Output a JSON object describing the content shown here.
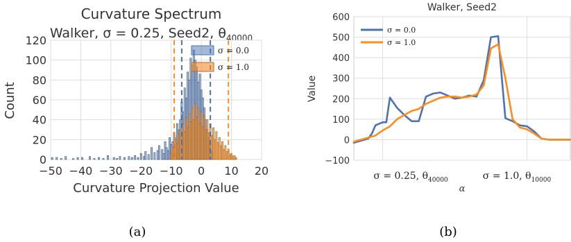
{
  "panels": {
    "a": {
      "label": "(a)"
    },
    "b": {
      "label": "(b)"
    }
  },
  "chart_data": [
    {
      "type": "histogram",
      "title": "Curvature Spectrum",
      "subtitle": "Walker, σ = 0.25, Seed2, θ",
      "subtitle_subscript": "40000",
      "xlabel": "Curvature Projection Value",
      "ylabel": "Count",
      "xlim": [
        -50,
        20
      ],
      "ylim": [
        0,
        120
      ],
      "xticks": [
        "−50",
        "−40",
        "−30",
        "−20",
        "−10",
        "0",
        "10",
        "20"
      ],
      "yticks": [
        "0",
        "20",
        "40",
        "60",
        "80",
        "100",
        "120"
      ],
      "grid": true,
      "legend": "top-right",
      "colors": {
        "blue": "#4c72b0",
        "orange": "#f28e2b",
        "grid": "#cccccc"
      },
      "series": [
        {
          "name": "σ = 0.0",
          "color": "#4c72b0",
          "bin_width": 0.5,
          "dashed_lines": [
            -6.5,
            3.0
          ],
          "bins": [
            [
              -49.5,
              2
            ],
            [
              -48,
              2
            ],
            [
              -46.5,
              1
            ],
            [
              -45,
              3
            ],
            [
              -42.5,
              1
            ],
            [
              -41,
              2
            ],
            [
              -39.5,
              2
            ],
            [
              -37,
              3
            ],
            [
              -35.5,
              1
            ],
            [
              -34,
              2
            ],
            [
              -32.5,
              1
            ],
            [
              -31,
              4
            ],
            [
              -29,
              2
            ],
            [
              -28,
              1
            ],
            [
              -27,
              3
            ],
            [
              -25.5,
              2
            ],
            [
              -24,
              3
            ],
            [
              -23,
              2
            ],
            [
              -22,
              4
            ],
            [
              -21,
              2
            ],
            [
              -20,
              6
            ],
            [
              -19,
              3
            ],
            [
              -18.5,
              8
            ],
            [
              -17.5,
              5
            ],
            [
              -16.5,
              12
            ],
            [
              -15.5,
              7
            ],
            [
              -14.5,
              9
            ],
            [
              -14,
              14
            ],
            [
              -13,
              10
            ],
            [
              -12.5,
              6
            ],
            [
              -12,
              18
            ],
            [
              -11.5,
              12
            ],
            [
              -11,
              9
            ],
            [
              -10.5,
              22
            ],
            [
              -10,
              15
            ],
            [
              -9.5,
              18
            ],
            [
              -9,
              27
            ],
            [
              -8.5,
              20
            ],
            [
              -8,
              36
            ],
            [
              -7.5,
              30
            ],
            [
              -7,
              40
            ],
            [
              -6.5,
              58
            ],
            [
              -6,
              48
            ],
            [
              -5.5,
              72
            ],
            [
              -5,
              62
            ],
            [
              -4.5,
              88
            ],
            [
              -4,
              80
            ],
            [
              -3.5,
              102
            ],
            [
              -3,
              95
            ],
            [
              -2.5,
              110
            ],
            [
              -2,
              100
            ],
            [
              -1.5,
              93
            ],
            [
              -1,
              78
            ],
            [
              -0.5,
              86
            ],
            [
              0,
              70
            ],
            [
              0.5,
              62
            ],
            [
              1,
              52
            ],
            [
              1.5,
              40
            ],
            [
              2,
              30
            ],
            [
              2.5,
              22
            ],
            [
              3,
              14
            ],
            [
              3.5,
              8
            ]
          ]
        },
        {
          "name": "σ = 1.0",
          "color": "#f28e2b",
          "bin_width": 0.5,
          "dashed_lines": [
            -9.0,
            9.0
          ],
          "bins": [
            [
              -10,
              6
            ],
            [
              -9.5,
              12
            ],
            [
              -9,
              18
            ],
            [
              -8.5,
              22
            ],
            [
              -8,
              16
            ],
            [
              -7.5,
              26
            ],
            [
              -7,
              30
            ],
            [
              -6.5,
              20
            ],
            [
              -6,
              36
            ],
            [
              -5.5,
              28
            ],
            [
              -5,
              42
            ],
            [
              -4.5,
              32
            ],
            [
              -4,
              46
            ],
            [
              -3.5,
              38
            ],
            [
              -3,
              52
            ],
            [
              -2.5,
              40
            ],
            [
              -2,
              57
            ],
            [
              -1.5,
              43
            ],
            [
              -1,
              52
            ],
            [
              -0.5,
              36
            ],
            [
              0,
              48
            ],
            [
              0.5,
              33
            ],
            [
              1,
              44
            ],
            [
              1.5,
              30
            ],
            [
              2,
              40
            ],
            [
              2.5,
              27
            ],
            [
              3,
              36
            ],
            [
              3.5,
              24
            ],
            [
              4,
              32
            ],
            [
              4.5,
              20
            ],
            [
              5,
              28
            ],
            [
              5.5,
              17
            ],
            [
              6,
              22
            ],
            [
              6.5,
              14
            ],
            [
              7,
              18
            ],
            [
              7.5,
              10
            ],
            [
              8,
              14
            ],
            [
              8.5,
              8
            ],
            [
              9,
              10
            ],
            [
              9.5,
              5
            ],
            [
              10,
              6
            ],
            [
              10.5,
              3
            ],
            [
              11,
              4
            ],
            [
              11.5,
              2
            ]
          ]
        }
      ]
    },
    {
      "type": "line",
      "title": "Walker, Seed2",
      "xlabel": "α",
      "ylabel": "Value",
      "xlim": [
        -0.2,
        1.3
      ],
      "ylim": [
        -100,
        600
      ],
      "yticks": [
        "−100",
        "0",
        "100",
        "200",
        "300",
        "400",
        "500",
        "600"
      ],
      "xtick_labels": [
        {
          "text": "σ = 0.25, θ",
          "sub": "40000",
          "x": 0.0
        },
        {
          "text": "σ = 1.0, θ",
          "sub": "10000",
          "x": 1.0
        }
      ],
      "grid": true,
      "legend": "top-left",
      "series": [
        {
          "name": "σ = 0.0",
          "color": "#4c72b0",
          "x": [
            -0.2,
            -0.15,
            -0.1,
            -0.075,
            -0.05,
            0.0,
            0.025,
            0.05,
            0.1,
            0.15,
            0.2,
            0.25,
            0.3,
            0.35,
            0.4,
            0.45,
            0.5,
            0.55,
            0.6,
            0.65,
            0.7,
            0.75,
            0.8,
            0.85,
            0.9,
            0.95,
            1.0,
            1.05,
            1.1,
            1.15,
            1.2,
            1.25,
            1.3
          ],
          "values": [
            -15,
            -5,
            5,
            30,
            70,
            85,
            85,
            205,
            155,
            120,
            90,
            90,
            210,
            225,
            230,
            215,
            200,
            205,
            215,
            210,
            290,
            500,
            505,
            105,
            90,
            70,
            65,
            40,
            5,
            0,
            0,
            0,
            0
          ]
        },
        {
          "name": "σ = 1.0",
          "color": "#ff8c1a",
          "x": [
            -0.2,
            -0.15,
            -0.1,
            -0.05,
            0.0,
            0.05,
            0.1,
            0.15,
            0.2,
            0.25,
            0.3,
            0.35,
            0.4,
            0.45,
            0.5,
            0.55,
            0.6,
            0.65,
            0.7,
            0.75,
            0.8,
            0.85,
            0.9,
            0.95,
            1.0,
            1.05,
            1.1,
            1.15,
            1.2,
            1.25,
            1.3
          ],
          "values": [
            -10,
            0,
            10,
            20,
            45,
            65,
            100,
            120,
            140,
            150,
            175,
            190,
            205,
            210,
            210,
            205,
            210,
            220,
            265,
            445,
            465,
            300,
            100,
            60,
            50,
            30,
            5,
            0,
            0,
            0,
            0
          ]
        }
      ]
    }
  ]
}
